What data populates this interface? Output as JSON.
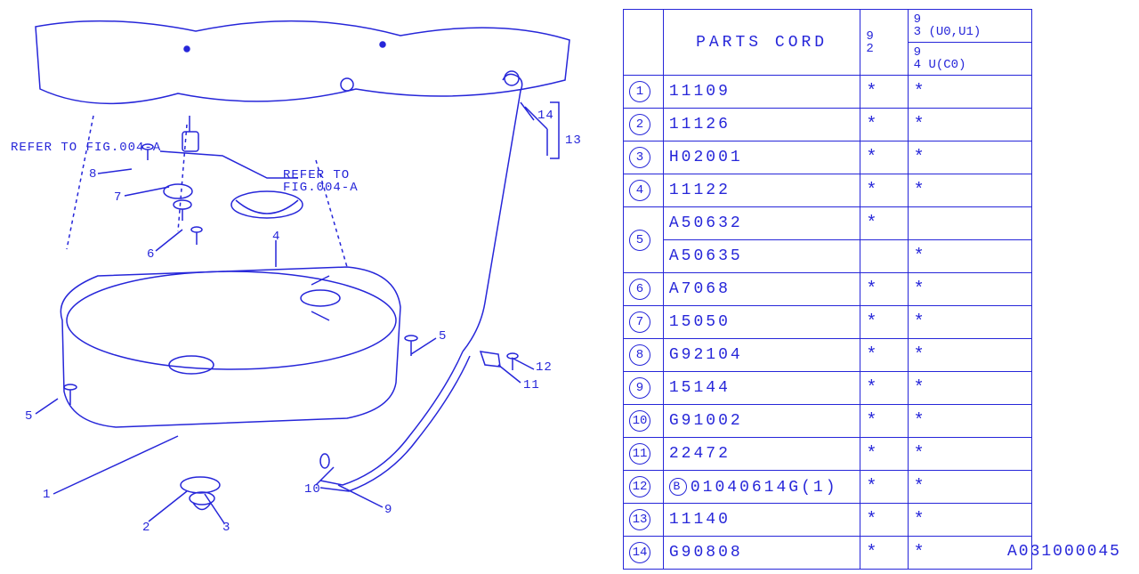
{
  "table": {
    "header_label": "PARTS CORD",
    "col1_top": "9",
    "col1_bot": "2",
    "col2_top": "9\n3 (U0,U1)",
    "col2_bot": "9\n4 U(C0)",
    "rows": [
      {
        "idx": "1",
        "code": "11109",
        "m1": "*",
        "m2": "*",
        "span": 1
      },
      {
        "idx": "2",
        "code": "11126",
        "m1": "*",
        "m2": "*",
        "span": 1
      },
      {
        "idx": "3",
        "code": "H02001",
        "m1": "*",
        "m2": "*",
        "span": 1
      },
      {
        "idx": "4",
        "code": "11122",
        "m1": "*",
        "m2": "*",
        "span": 1
      },
      {
        "idx": "5",
        "code": "A50632",
        "m1": "*",
        "m2": "",
        "span": 2
      },
      {
        "idx": "",
        "code": "A50635",
        "m1": "",
        "m2": "*",
        "span": 0
      },
      {
        "idx": "6",
        "code": "A7068",
        "m1": "*",
        "m2": "*",
        "span": 1
      },
      {
        "idx": "7",
        "code": "15050",
        "m1": "*",
        "m2": "*",
        "span": 1
      },
      {
        "idx": "8",
        "code": "G92104",
        "m1": "*",
        "m2": "*",
        "span": 1
      },
      {
        "idx": "9",
        "code": "15144",
        "m1": "*",
        "m2": "*",
        "span": 1
      },
      {
        "idx": "10",
        "code": "G91002",
        "m1": "*",
        "m2": "*",
        "span": 1
      },
      {
        "idx": "11",
        "code": "22472",
        "m1": "*",
        "m2": "*",
        "span": 1
      },
      {
        "idx": "12",
        "code": "01040614G(1)",
        "m1": "*",
        "m2": "*",
        "span": 1,
        "prefix": "B"
      },
      {
        "idx": "13",
        "code": "11140",
        "m1": "*",
        "m2": "*",
        "span": 1
      },
      {
        "idx": "14",
        "code": "G90808",
        "m1": "*",
        "m2": "*",
        "span": 1
      }
    ]
  },
  "diagram_id": "A031000045",
  "annotations": {
    "refer1": "REFER TO FIG.004-A",
    "refer2_l1": "REFER TO",
    "refer2_l2": "FIG.004-A",
    "c1": "1",
    "c2": "2",
    "c3": "3",
    "c4": "4",
    "c5": "5",
    "c6": "6",
    "c7": "7",
    "c8": "8",
    "c9": "9",
    "c10": "10",
    "c11": "11",
    "c12": "12",
    "c13": "13",
    "c14": "14"
  },
  "colors": {
    "line": "#2626d9",
    "background": "#ffffff"
  }
}
